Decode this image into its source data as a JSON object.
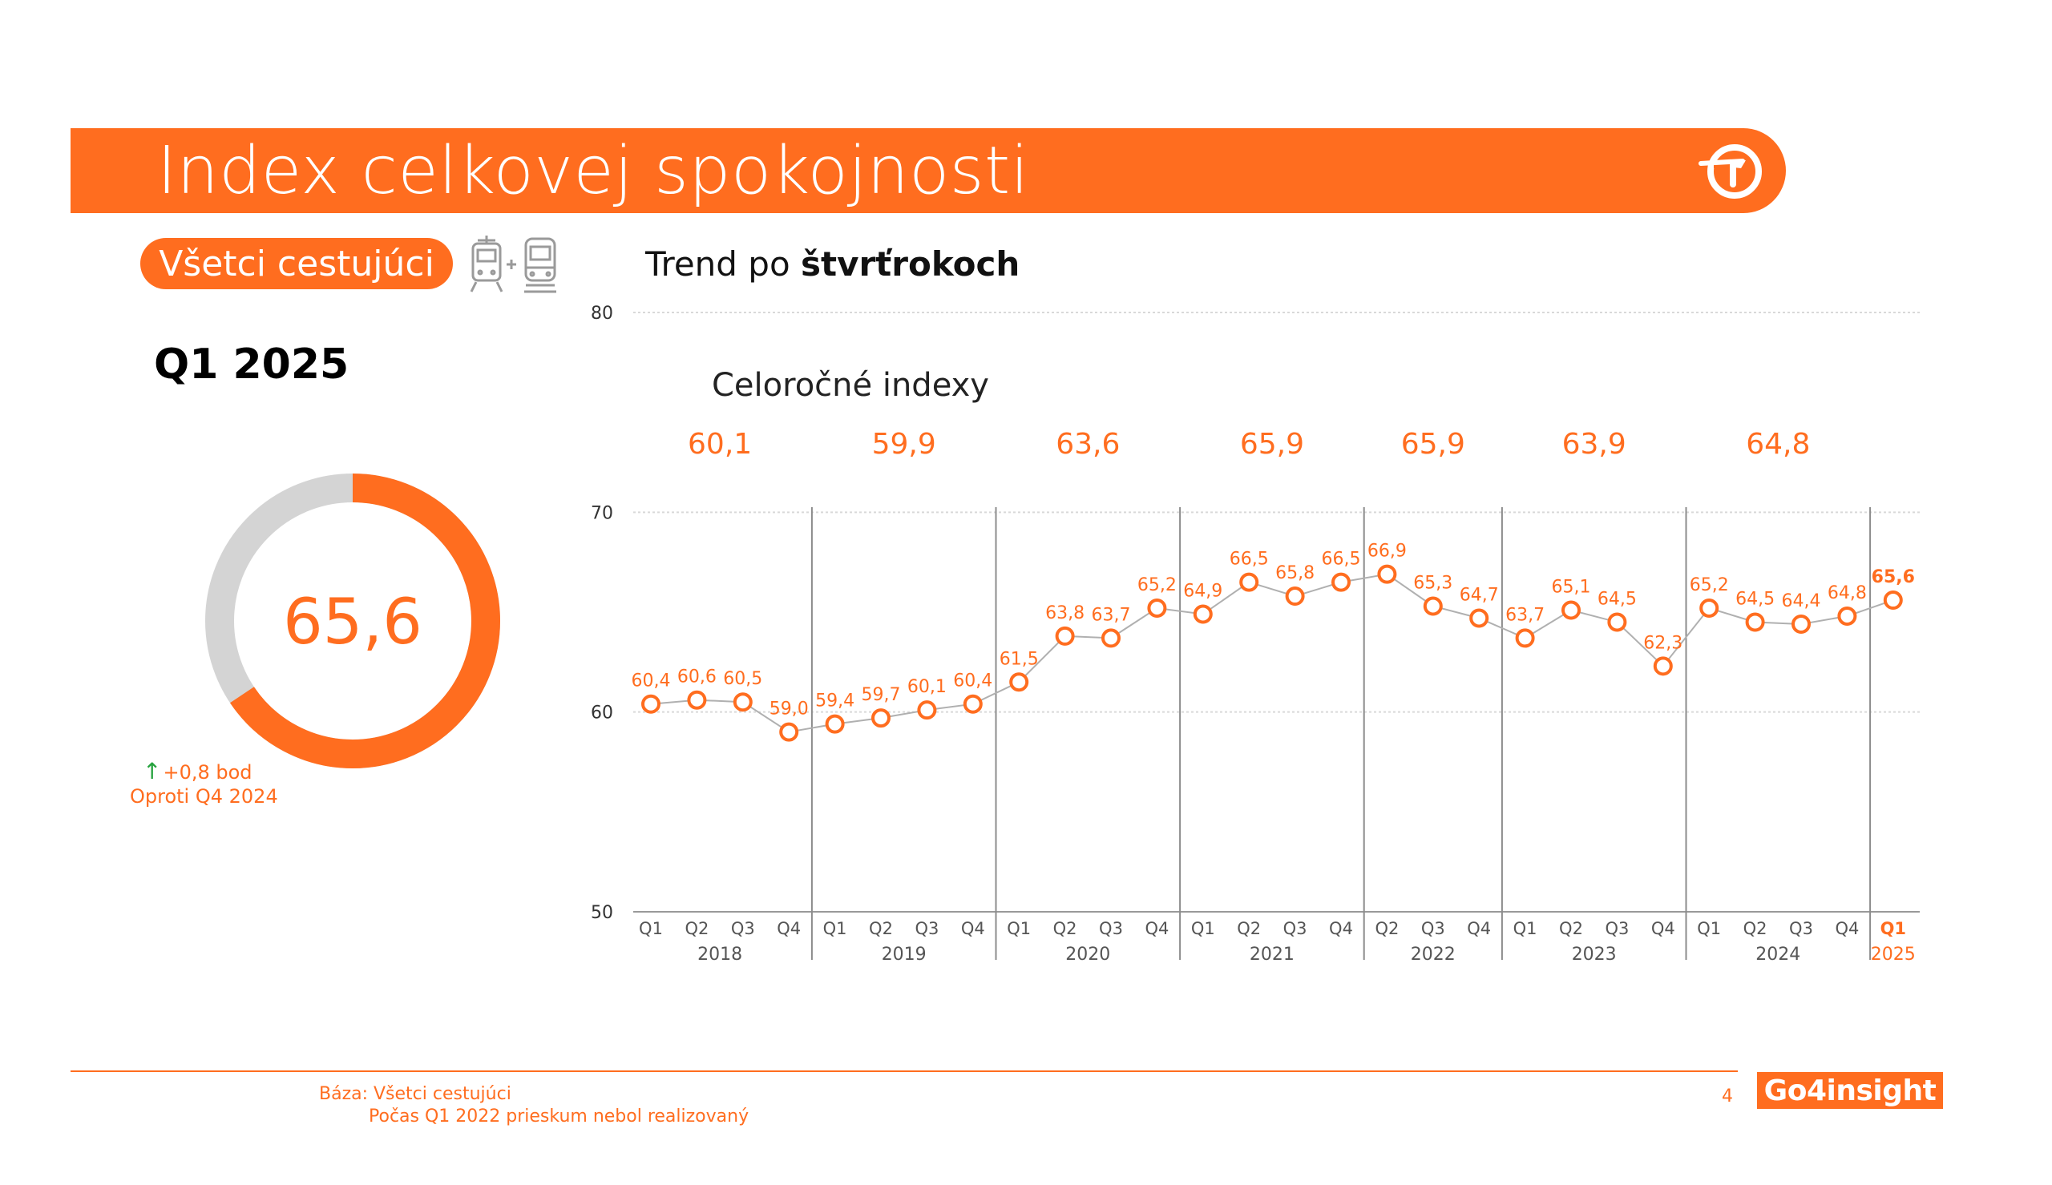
{
  "header": {
    "title": "Index celkovej spokojnosti"
  },
  "segment": {
    "label": "Všetci cestujúci"
  },
  "period": {
    "label": "Q1 2025"
  },
  "donut": {
    "value_text": "65,6",
    "value": 65.6,
    "max": 100,
    "colors": {
      "fill": "#ff6d1f",
      "rest": "#d4d4d4"
    }
  },
  "change": {
    "arrow": "↑",
    "delta": "+0,8 bod",
    "compare": "Oproti Q4 2024"
  },
  "chart_heading": {
    "prefix": "Trend po ",
    "bold": "štvrťrokoch"
  },
  "annual": {
    "label": "Celoročné indexy"
  },
  "chart_data": {
    "type": "line",
    "title": "Trend po štvrťrokoch",
    "ylim": [
      50,
      80
    ],
    "yticks": [
      50,
      60,
      70,
      80
    ],
    "grid": true,
    "x": [
      "Q1 2018",
      "Q2 2018",
      "Q3 2018",
      "Q4 2018",
      "Q1 2019",
      "Q2 2019",
      "Q3 2019",
      "Q4 2019",
      "Q1 2020",
      "Q2 2020",
      "Q3 2020",
      "Q4 2020",
      "Q1 2021",
      "Q2 2021",
      "Q3 2021",
      "Q4 2021",
      "Q2 2022",
      "Q3 2022",
      "Q4 2022",
      "Q1 2023",
      "Q2 2023",
      "Q3 2023",
      "Q4 2023",
      "Q1 2024",
      "Q2 2024",
      "Q3 2024",
      "Q4 2024",
      "Q1 2025"
    ],
    "values": [
      60.4,
      60.6,
      60.5,
      59.0,
      59.4,
      59.7,
      60.1,
      60.4,
      61.5,
      63.8,
      63.7,
      65.2,
      64.9,
      66.5,
      65.8,
      66.5,
      66.9,
      65.3,
      64.7,
      63.7,
      65.1,
      64.5,
      62.3,
      65.2,
      64.5,
      64.4,
      64.8,
      65.6
    ],
    "labels": [
      "60,4",
      "60,6",
      "60,5",
      "59,0",
      "59,4",
      "59,7",
      "60,1",
      "60,4",
      "61,5",
      "63,8",
      "63,7",
      "65,2",
      "64,9",
      "66,5",
      "65,8",
      "66,5",
      "66,9",
      "65,3",
      "64,7",
      "63,7",
      "65,1",
      "64,5",
      "62,3",
      "65,2",
      "64,5",
      "64,4",
      "64,8",
      "65,6"
    ],
    "quarter_ticks": [
      "Q1",
      "Q2",
      "Q3",
      "Q4",
      "Q1",
      "Q2",
      "Q3",
      "Q4",
      "Q1",
      "Q2",
      "Q3",
      "Q4",
      "Q1",
      "Q2",
      "Q3",
      "Q4",
      "Q2",
      "Q3",
      "Q4",
      "Q1",
      "Q2",
      "Q3",
      "Q4",
      "Q1",
      "Q2",
      "Q3",
      "Q4",
      "Q1"
    ],
    "years": [
      "2018",
      "2019",
      "2020",
      "2021",
      "2022",
      "2023",
      "2024",
      "2025"
    ],
    "year_groups": [
      [
        0,
        3
      ],
      [
        4,
        7
      ],
      [
        8,
        11
      ],
      [
        12,
        15
      ],
      [
        16,
        18
      ],
      [
        19,
        22
      ],
      [
        23,
        26
      ],
      [
        27,
        27
      ]
    ],
    "annual_indexes": [
      "60,1",
      "59,9",
      "63,6",
      "65,9",
      "65,9",
      "63,9",
      "64,8"
    ],
    "highlight_last": true,
    "colors": {
      "line": "#b0b0b0",
      "marker": "#ff6d1f",
      "text": "#ff6d1f",
      "grid": "#d9d9d9",
      "divider": "#8c8c8c"
    }
  },
  "footer": {
    "base": "Báza: Všetci cestujúci",
    "note": "Počas Q1 2022 prieskum nebol realizovaný",
    "page": "4",
    "brand": "Go4insight"
  }
}
